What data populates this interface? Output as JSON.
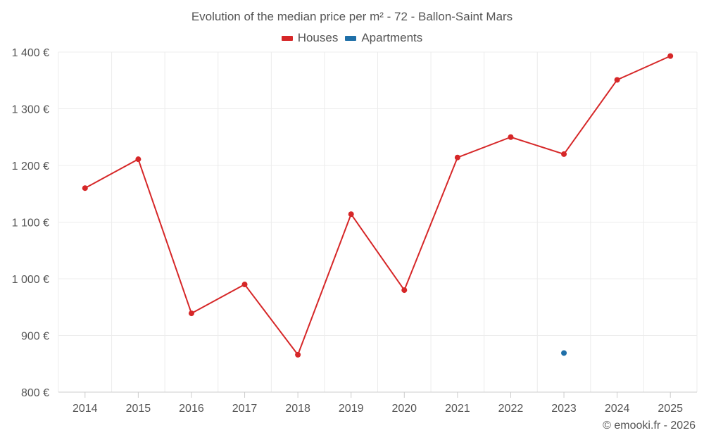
{
  "chart_data": {
    "type": "line",
    "title": "Evolution of the median price per m² - 72 - Ballon-Saint Mars",
    "xlabel": "",
    "ylabel": "",
    "categories": [
      "2014",
      "2015",
      "2016",
      "2017",
      "2018",
      "2019",
      "2020",
      "2021",
      "2022",
      "2023",
      "2024",
      "2025"
    ],
    "series": [
      {
        "name": "Houses",
        "color": "#d62728",
        "values": [
          1160,
          1211,
          939,
          990,
          866,
          1114,
          980,
          1214,
          1250,
          1220,
          1351,
          1393
        ]
      },
      {
        "name": "Apartments",
        "color": "#1f6fa8",
        "values": [
          null,
          null,
          null,
          null,
          null,
          null,
          null,
          null,
          null,
          869,
          null,
          null
        ]
      }
    ],
    "ylim": [
      800,
      1400
    ],
    "yticks": [
      800,
      900,
      1000,
      1100,
      1200,
      1300,
      1400
    ],
    "ytick_labels": [
      "800 €",
      "900 €",
      "1 000 €",
      "1 100 €",
      "1 200 €",
      "1 300 €",
      "1 400 €"
    ],
    "grid": true,
    "legend_position": "top-center"
  },
  "credit": "© emooki.fr - 2026"
}
